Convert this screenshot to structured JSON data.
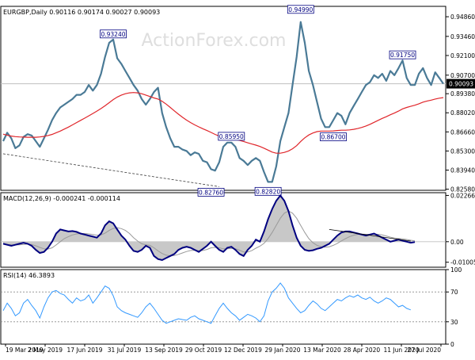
{
  "watermark": "ActionForex.com",
  "colors": {
    "background": "#ffffff",
    "border": "#000000",
    "price": "#4a7a96",
    "ma": "#e0262b",
    "trendline": "#404040",
    "macd_fill": "#c8c8c8",
    "macd_line": "#000080",
    "rsi_line": "#3399ff",
    "rsi_levels": "#8a8a8a",
    "label_border": "#000080",
    "label_text": "#000080",
    "current_price_bg": "#000000",
    "current_price_text": "#ffffff"
  },
  "chart_data": [
    {
      "type": "line",
      "panel": "price",
      "header": "EURGBP,Daily  0.90116 0.90174 0.90027 0.90093",
      "x_ticks": [
        "19 Mar 2019",
        "2 May 2019",
        "17 Jun 2019",
        "31 Jul 2019",
        "13 Sep 2019",
        "29 Oct 2019",
        "12 Dec 2019",
        "29 Jan 2020",
        "13 Mar 2020",
        "28 Apr 2020",
        "11 Jun 2020",
        "27 Jul 2020"
      ],
      "y_ticks": [
        "0.94860",
        "0.93460",
        "0.92100",
        "0.90700",
        "0.89380",
        "0.88020",
        "0.86660",
        "0.85300",
        "0.83940",
        "0.82580"
      ],
      "ylim": [
        0.825,
        0.956
      ],
      "current_price": "0.90093",
      "series": [
        {
          "name": "EURGBP",
          "values": [
            0.86,
            0.866,
            0.862,
            0.855,
            0.857,
            0.863,
            0.865,
            0.864,
            0.86,
            0.856,
            0.862,
            0.868,
            0.875,
            0.88,
            0.884,
            0.886,
            0.888,
            0.89,
            0.893,
            0.893,
            0.895,
            0.9,
            0.896,
            0.9,
            0.908,
            0.92,
            0.93,
            0.9324,
            0.919,
            0.915,
            0.91,
            0.905,
            0.9,
            0.896,
            0.89,
            0.886,
            0.89,
            0.895,
            0.898,
            0.88,
            0.87,
            0.862,
            0.856,
            0.856,
            0.854,
            0.853,
            0.85,
            0.852,
            0.851,
            0.846,
            0.845,
            0.84,
            0.839,
            0.845,
            0.856,
            0.859,
            0.859,
            0.856,
            0.848,
            0.846,
            0.843,
            0.846,
            0.848,
            0.846,
            0.838,
            0.831,
            0.831,
            0.842,
            0.86,
            0.87,
            0.88,
            0.9,
            0.92,
            0.9449,
            0.93,
            0.91,
            0.9,
            0.888,
            0.876,
            0.87,
            0.87,
            0.875,
            0.88,
            0.878,
            0.872,
            0.88,
            0.885,
            0.89,
            0.895,
            0.9,
            0.902,
            0.907,
            0.905,
            0.908,
            0.903,
            0.91,
            0.907,
            0.912,
            0.9175,
            0.905,
            0.9,
            0.9,
            0.908,
            0.912,
            0.905,
            0.9,
            0.909,
            0.905,
            0.9009
          ]
        },
        {
          "name": "Moving average",
          "values": [
            0.865,
            0.8642,
            0.8636,
            0.8632,
            0.863,
            0.8629,
            0.8628,
            0.8628,
            0.8628,
            0.863,
            0.8634,
            0.864,
            0.8648,
            0.866,
            0.8672,
            0.8686,
            0.87,
            0.8716,
            0.8732,
            0.8748,
            0.8764,
            0.878,
            0.8797,
            0.8814,
            0.8832,
            0.8852,
            0.8874,
            0.8896,
            0.8914,
            0.8928,
            0.8938,
            0.8944,
            0.8946,
            0.8944,
            0.8938,
            0.8928,
            0.8918,
            0.8908,
            0.89,
            0.8884,
            0.8864,
            0.884,
            0.8816,
            0.8792,
            0.877,
            0.875,
            0.8732,
            0.8716,
            0.8702,
            0.8688,
            0.8676,
            0.8662,
            0.8648,
            0.8636,
            0.8626,
            0.862,
            0.8616,
            0.8612,
            0.8606,
            0.8598,
            0.8588,
            0.858,
            0.8572,
            0.8562,
            0.855,
            0.8536,
            0.8522,
            0.8514,
            0.8514,
            0.852,
            0.853,
            0.8546,
            0.8568,
            0.8598,
            0.8624,
            0.8644,
            0.8658,
            0.8668,
            0.8672,
            0.8672,
            0.8672,
            0.8673,
            0.8676,
            0.8678,
            0.8678,
            0.868,
            0.8684,
            0.869,
            0.8698,
            0.8708,
            0.872,
            0.8734,
            0.8748,
            0.8762,
            0.8774,
            0.8788,
            0.88,
            0.8814,
            0.883,
            0.884,
            0.8848,
            0.8856,
            0.8866,
            0.8878,
            0.8886,
            0.8892,
            0.89,
            0.8906,
            0.891
          ]
        }
      ],
      "annotations": [
        {
          "label": "0.93240",
          "index": 27,
          "value": 0.9324,
          "position": "above"
        },
        {
          "label": "0.85950",
          "index": 56,
          "value": 0.8595,
          "position": "above"
        },
        {
          "label": "0.82760",
          "index": 51,
          "value": 0.8276,
          "position": "below"
        },
        {
          "label": "0.82820",
          "index": 65,
          "value": 0.8282,
          "position": "below"
        },
        {
          "label": "0.94990",
          "index": 73,
          "value": 0.9499,
          "position": "above"
        },
        {
          "label": "0.86700",
          "index": 81,
          "value": 0.867,
          "position": "below"
        },
        {
          "label": "0.91750",
          "index": 98,
          "value": 0.9175,
          "position": "above"
        }
      ],
      "trendline": {
        "from": [
          0,
          0.851
        ],
        "to": [
          53,
          0.8276
        ]
      },
      "hline": 0.9009
    },
    {
      "type": "area",
      "panel": "macd",
      "header": "MACD(12,26,9) -0.000241 -0.000114",
      "y_ticks": [
        "0.022662",
        "0.00",
        "-0.010052"
      ],
      "ylim": [
        -0.0125,
        0.024
      ],
      "series": [
        {
          "name": "MACD",
          "values": [
            -0.001,
            -0.0015,
            -0.002,
            -0.0015,
            -0.001,
            -0.0005,
            -0.001,
            -0.002,
            -0.004,
            -0.0055,
            -0.005,
            -0.003,
            0.0,
            0.004,
            0.006,
            0.0055,
            0.005,
            0.0052,
            0.0048,
            0.004,
            0.0035,
            0.003,
            0.0025,
            0.002,
            0.004,
            0.008,
            0.01,
            0.009,
            0.006,
            0.003,
            0.001,
            -0.002,
            -0.0045,
            -0.005,
            -0.004,
            -0.002,
            -0.003,
            -0.007,
            -0.0085,
            -0.009,
            -0.008,
            -0.007,
            -0.006,
            -0.004,
            -0.003,
            -0.0025,
            -0.003,
            -0.004,
            -0.005,
            -0.0035,
            -0.002,
            0.0,
            -0.002,
            -0.004,
            -0.005,
            -0.003,
            -0.0025,
            -0.004,
            -0.006,
            -0.007,
            -0.004,
            -0.002,
            0.001,
            0.0,
            0.005,
            0.011,
            0.016,
            0.02,
            0.0226,
            0.02,
            0.015,
            0.008,
            0.002,
            -0.002,
            -0.004,
            -0.0045,
            -0.0042,
            -0.0035,
            -0.003,
            -0.002,
            -0.001,
            0.001,
            0.003,
            0.0045,
            0.005,
            0.005,
            0.0045,
            0.004,
            0.0035,
            0.003,
            0.0035,
            0.004,
            0.003,
            0.002,
            0.001,
            0.0,
            0.0005,
            0.001,
            0.0005,
            0.0,
            -0.0005,
            -0.0002
          ]
        },
        {
          "name": "Signal",
          "values": [
            -0.0012,
            -0.0013,
            -0.0015,
            -0.0016,
            -0.0015,
            -0.0013,
            -0.0012,
            -0.0014,
            -0.002,
            -0.0028,
            -0.0035,
            -0.0036,
            -0.003,
            -0.0016,
            0.0,
            0.0015,
            0.0025,
            0.0033,
            0.0038,
            0.004,
            0.004,
            0.0038,
            0.0035,
            0.0032,
            0.0033,
            0.0042,
            0.0055,
            0.0065,
            0.0068,
            0.0064,
            0.0055,
            0.004,
            0.002,
            0.0003,
            -0.001,
            -0.0015,
            -0.0018,
            -0.003,
            -0.0045,
            -0.0058,
            -0.0066,
            -0.007,
            -0.0068,
            -0.0062,
            -0.0055,
            -0.0048,
            -0.0043,
            -0.0042,
            -0.0044,
            -0.0043,
            -0.0038,
            -0.003,
            -0.0028,
            -0.003,
            -0.0035,
            -0.0035,
            -0.0033,
            -0.0035,
            -0.0042,
            -0.005,
            -0.005,
            -0.0044,
            -0.0032,
            -0.0022,
            -0.0008,
            0.0015,
            0.0045,
            0.008,
            0.0115,
            0.014,
            0.015,
            0.014,
            0.0115,
            0.008,
            0.0045,
            0.0015,
            -0.0005,
            -0.0018,
            -0.0025,
            -0.0027,
            -0.0025,
            -0.0018,
            -0.0008,
            0.0004,
            0.0015,
            0.0025,
            0.0032,
            0.0036,
            0.0037,
            0.0036,
            0.0036,
            0.0037,
            0.0036,
            0.0033,
            0.0028,
            0.0022,
            0.0018,
            0.0016,
            0.0014,
            0.0011,
            0.0007,
            0.0004
          ]
        }
      ],
      "trendline": {
        "from": [
          80,
          0.006
        ],
        "to": [
          100,
          0.0003
        ]
      }
    },
    {
      "type": "line",
      "panel": "rsi",
      "header": "RSI(14) 46.3893",
      "y_ticks": [
        "100",
        "70",
        "30",
        "0"
      ],
      "ylim": [
        0,
        100
      ],
      "levels": [
        70,
        30
      ],
      "series": [
        {
          "name": "RSI",
          "values": [
            45,
            55,
            48,
            38,
            42,
            55,
            60,
            52,
            45,
            35,
            50,
            62,
            70,
            72,
            68,
            66,
            60,
            55,
            62,
            58,
            60,
            66,
            55,
            62,
            70,
            78,
            75,
            65,
            50,
            45,
            42,
            40,
            38,
            36,
            42,
            50,
            55,
            48,
            40,
            32,
            28,
            30,
            32,
            34,
            33,
            32,
            36,
            38,
            34,
            32,
            30,
            28,
            38,
            48,
            55,
            48,
            42,
            38,
            32,
            36,
            40,
            38,
            35,
            30,
            38,
            58,
            70,
            75,
            82,
            75,
            62,
            55,
            48,
            42,
            45,
            52,
            58,
            54,
            48,
            45,
            50,
            55,
            60,
            58,
            62,
            65,
            63,
            66,
            62,
            60,
            63,
            58,
            55,
            58,
            62,
            60,
            55,
            50,
            52,
            48,
            46
          ]
        }
      ]
    }
  ]
}
